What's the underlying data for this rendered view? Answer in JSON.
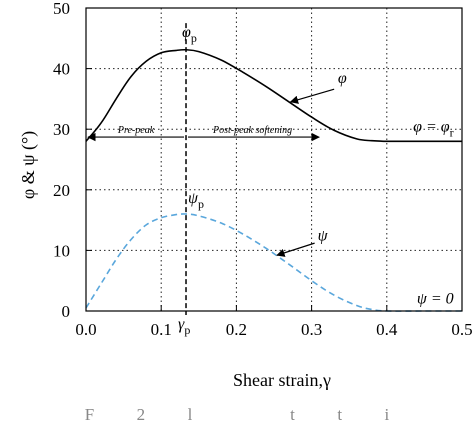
{
  "chart_data": {
    "type": "line",
    "xlabel": "Shear strain,γ",
    "ylabel": "φ & ψ (°)",
    "xlim": [
      0,
      0.5
    ],
    "ylim": [
      0,
      50
    ],
    "xticks": [
      "0.0",
      "0.1",
      "0.2",
      "0.3",
      "0.4",
      "0.5"
    ],
    "yticks": [
      "0",
      "10",
      "20",
      "30",
      "40",
      "50"
    ],
    "grid": true,
    "series": [
      {
        "name": "φ",
        "style": "solid",
        "color": "#000000",
        "x": [
          0.0,
          0.02,
          0.04,
          0.06,
          0.08,
          0.1,
          0.12,
          0.133,
          0.15,
          0.18,
          0.21,
          0.24,
          0.27,
          0.3,
          0.33,
          0.36,
          0.38,
          0.4,
          0.45,
          0.5
        ],
        "y": [
          28,
          31,
          35,
          38.7,
          41.2,
          42.6,
          43.0,
          43.1,
          42.8,
          41.4,
          39.3,
          37.0,
          34.5,
          32.0,
          29.8,
          28.4,
          28.1,
          28.0,
          28.0,
          28.0
        ]
      },
      {
        "name": "ψ",
        "style": "dashed",
        "color": "#5aa7dc",
        "x": [
          0.0,
          0.02,
          0.04,
          0.06,
          0.08,
          0.1,
          0.12,
          0.133,
          0.15,
          0.18,
          0.21,
          0.24,
          0.27,
          0.3,
          0.33,
          0.36,
          0.38,
          0.4,
          0.45,
          0.5
        ],
        "y": [
          0.5,
          4.5,
          8.5,
          11.8,
          14.2,
          15.4,
          15.9,
          16.0,
          15.7,
          14.5,
          12.6,
          10.3,
          7.7,
          5.0,
          2.6,
          0.9,
          0.25,
          0,
          0,
          0
        ]
      }
    ],
    "annotations": {
      "peak_x": 0.133,
      "phi_peak_label": "φ",
      "phi_peak_sub": "p",
      "psi_peak_label": "ψ",
      "psi_peak_sub": "p",
      "gamma_peak_label": "γ",
      "gamma_peak_sub": "p",
      "phi_label": "φ",
      "psi_label": "ψ",
      "phi_residual_label": "φ = φ",
      "phi_residual_sub": "r",
      "psi_zero_label": "ψ = 0",
      "pre_peak": "Pre-peak",
      "post_peak": "Post-peak softening"
    },
    "caption": "F    2    l        t    t    i"
  }
}
